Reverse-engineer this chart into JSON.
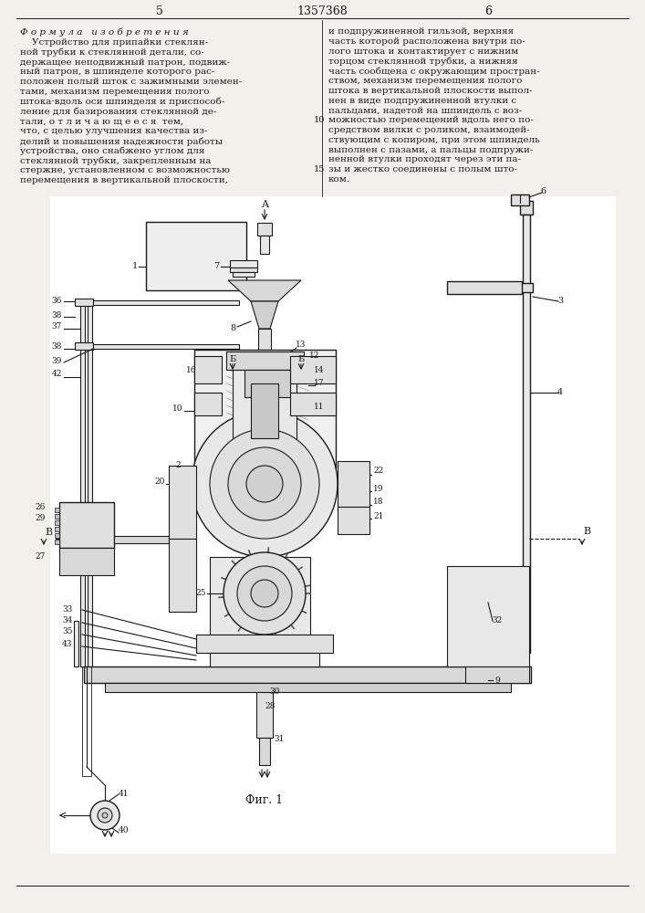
{
  "page_width": 7.07,
  "page_height": 10.0,
  "bg_color": "#f2f0eb",
  "header_page_left": "5",
  "header_patent": "1357368",
  "header_page_right": "6",
  "text_color": "#1a1a1a",
  "line_color": "#1a1a1a",
  "figure_caption": "Фиг. 1",
  "left_col_title": "Ф о р м у л а   и з о б р е т е н и я",
  "left_col_lines": [
    "    Устройство для припайки стеклян-",
    "ной трубки к стеклянной детали, со-",
    "держащее неподвижный патрон, подвиж-",
    "ный патрон, в шпинделе которого рас-",
    "положен полый шток с зажимными элемен-",
    "тами, механизм перемещения полого",
    "штока·вдоль оси шпинделя и приспособ-",
    "ление для базирования стеклянной де-",
    "тали, о т л и ч а ю щ е е с я  тем,",
    "что, с целью улучшения качества из-",
    "делий и повышения надежности работы",
    "устройства, оно снабжено углом для",
    "стеклянной трубки, закрепленным на",
    "стержне, установленном с возможностью",
    "перемещения в вертикальной плоскости,"
  ],
  "right_col_lines": [
    "и подпружиненной гильзой, верхняя",
    "часть которой расположена внутри по-",
    "лого штока и контактирует с нижним",
    "торцом стеклянной трубки, а нижняя",
    "часть сообщена с окружающим простран-",
    "ством, механизм перемещения полого",
    "штока в вертикальной плоскости выпол-",
    "нен в виде подпружиненной втулки с",
    "пальцами, надетой на шпиндель с воз-",
    "можностью перемещений вдоль него по-",
    "средством вилки с роликом, взаимодей-",
    "ствующим с копиром, при этом шпиндель",
    "выполнен с пазами, а пальцы подпружи-",
    "ненной втулки проходят через эти па-",
    "зы и жестко соединены с полым што-",
    "ком."
  ]
}
